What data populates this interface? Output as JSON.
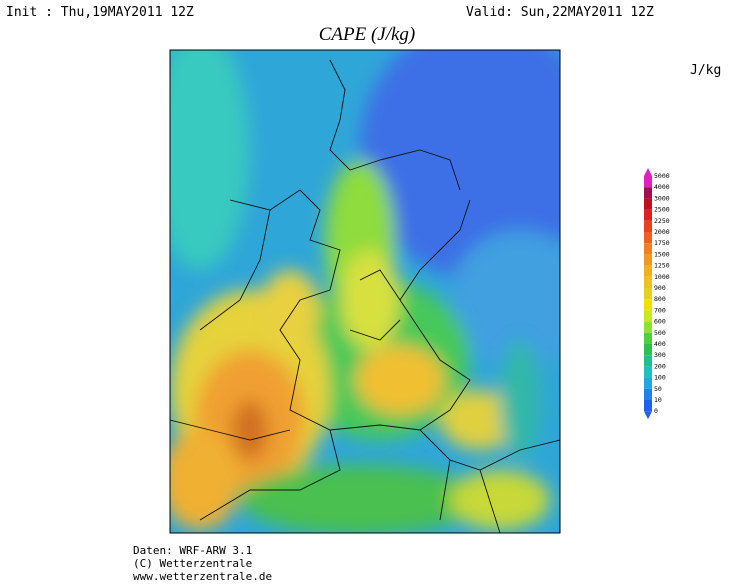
{
  "header": {
    "init": "Init : Thu,19MAY2011  12Z",
    "valid": "Valid: Sun,22MAY2011  12Z",
    "title": "CAPE (J/kg)",
    "unit": "J/kg"
  },
  "colorbar": {
    "labels": [
      "5000",
      "4000",
      "3000",
      "2500",
      "2250",
      "2000",
      "1750",
      "1500",
      "1250",
      "1000",
      "900",
      "800",
      "700",
      "600",
      "500",
      "400",
      "300",
      "200",
      "100",
      "50",
      "10",
      "0"
    ]
  },
  "footer": {
    "lines": [
      "Daten: WRF-ARW 3.1",
      "(C) Wetterzentrale",
      "www.wetterzentrale.de"
    ]
  }
}
